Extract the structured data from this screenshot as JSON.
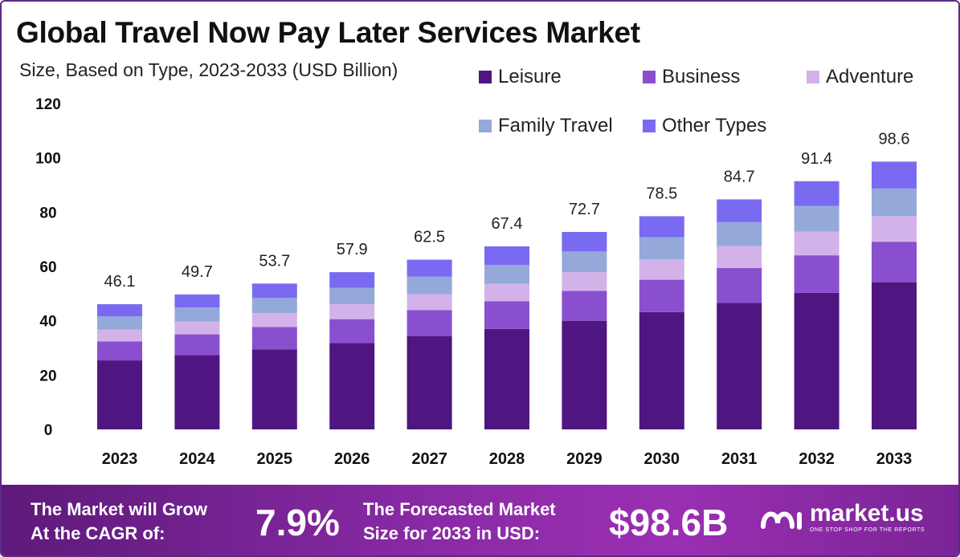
{
  "title": "Global Travel Now Pay Later Services Market",
  "subtitle": "Size, Based on Type, 2023-2033 (USD Billion)",
  "legend": [
    {
      "label": "Leisure",
      "color": "#4f1682"
    },
    {
      "label": "Business",
      "color": "#8a4fcf"
    },
    {
      "label": "Adventure",
      "color": "#d3b2ea"
    },
    {
      "label": "Family Travel",
      "color": "#94a9da"
    },
    {
      "label": "Other Types",
      "color": "#7a6af2"
    }
  ],
  "chart_data": {
    "type": "bar",
    "stacked": true,
    "title": "Global Travel Now Pay Later Services Market",
    "subtitle": "Size, Based on Type, 2023-2033 (USD Billion)",
    "xlabel": "",
    "ylabel": "",
    "ylim": [
      0,
      120
    ],
    "yticks": [
      "0",
      "20",
      "40",
      "60",
      "80",
      "100",
      "120"
    ],
    "grid": false,
    "legend_position": "top-right",
    "categories": [
      "2023",
      "2024",
      "2025",
      "2026",
      "2027",
      "2028",
      "2029",
      "2030",
      "2031",
      "2032",
      "2033"
    ],
    "totals": [
      46.1,
      49.7,
      53.7,
      57.9,
      62.5,
      67.4,
      72.7,
      78.5,
      84.7,
      91.4,
      98.6
    ],
    "total_labels": [
      "46.1",
      "49.7",
      "53.7",
      "57.9",
      "62.5",
      "67.4",
      "72.7",
      "78.5",
      "84.7",
      "91.4",
      "98.6"
    ],
    "series": [
      {
        "name": "Leisure",
        "color": "#4f1682",
        "values": [
          25.4,
          27.4,
          29.5,
          31.8,
          34.4,
          37.0,
          40.0,
          43.2,
          46.6,
          50.3,
          54.2
        ]
      },
      {
        "name": "Business",
        "color": "#8a4fcf",
        "values": [
          7.0,
          7.6,
          8.2,
          8.8,
          9.5,
          10.2,
          11.0,
          11.9,
          12.8,
          13.8,
          14.9
        ]
      },
      {
        "name": "Adventure",
        "color": "#d3b2ea",
        "values": [
          4.4,
          4.7,
          5.1,
          5.5,
          5.9,
          6.4,
          6.9,
          7.5,
          8.1,
          8.7,
          9.4
        ]
      },
      {
        "name": "Family Travel",
        "color": "#94a9da",
        "values": [
          4.8,
          5.2,
          5.6,
          6.0,
          6.5,
          7.0,
          7.6,
          8.2,
          8.8,
          9.5,
          10.2
        ]
      },
      {
        "name": "Other Types",
        "color": "#7a6af2",
        "values": [
          4.5,
          4.8,
          5.3,
          5.8,
          6.2,
          6.8,
          7.2,
          7.7,
          8.4,
          9.1,
          9.9
        ]
      }
    ]
  },
  "footer": {
    "cagr_label_line1": "The Market will Grow",
    "cagr_label_line2": "At the CAGR of:",
    "cagr_value": "7.9%",
    "forecast_label_line1": "The Forecasted Market",
    "forecast_label_line2": "Size for 2033 in USD:",
    "forecast_value": "$98.6B",
    "brand_name": "market.us",
    "brand_tagline": "ONE STOP SHOP FOR THE REPORTS"
  }
}
